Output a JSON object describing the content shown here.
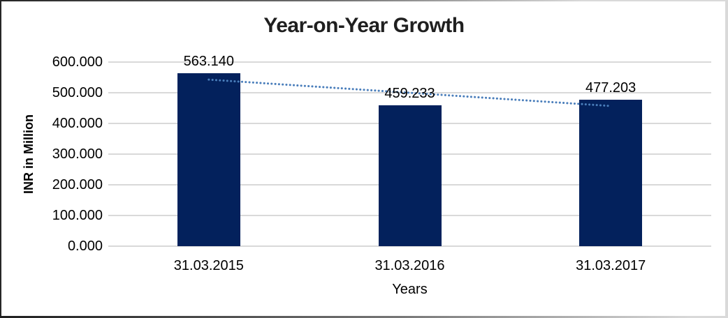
{
  "frame": {
    "background": "#ffffff",
    "border_dark": "#262626",
    "border_light": "#d9d9d9"
  },
  "chart_data": {
    "type": "bar",
    "title": "Year-on-Year Growth",
    "categories": [
      "31.03.2015",
      "31.03.2016",
      "31.03.2017"
    ],
    "values": [
      563.14,
      459.233,
      477.203
    ],
    "value_labels": [
      "563.140",
      "459.233",
      "477.203"
    ],
    "xlabel": "Years",
    "ylabel": "INR in Million",
    "ylim": [
      0,
      600
    ],
    "ytick_values": [
      0,
      100,
      200,
      300,
      400,
      500,
      600
    ],
    "ytick_labels": [
      "0.000",
      "100.000",
      "200.000",
      "300.000",
      "400.000",
      "500.000",
      "600.000"
    ],
    "grid": true,
    "legend": "none",
    "bar_color": "#03215c",
    "gridline_color": "#d9d9d9",
    "axis_text_color": "#000000",
    "title_color": "#1f1f1f",
    "trendline": {
      "type": "linear",
      "style": "dotted",
      "color": "#4a7ebb"
    }
  }
}
